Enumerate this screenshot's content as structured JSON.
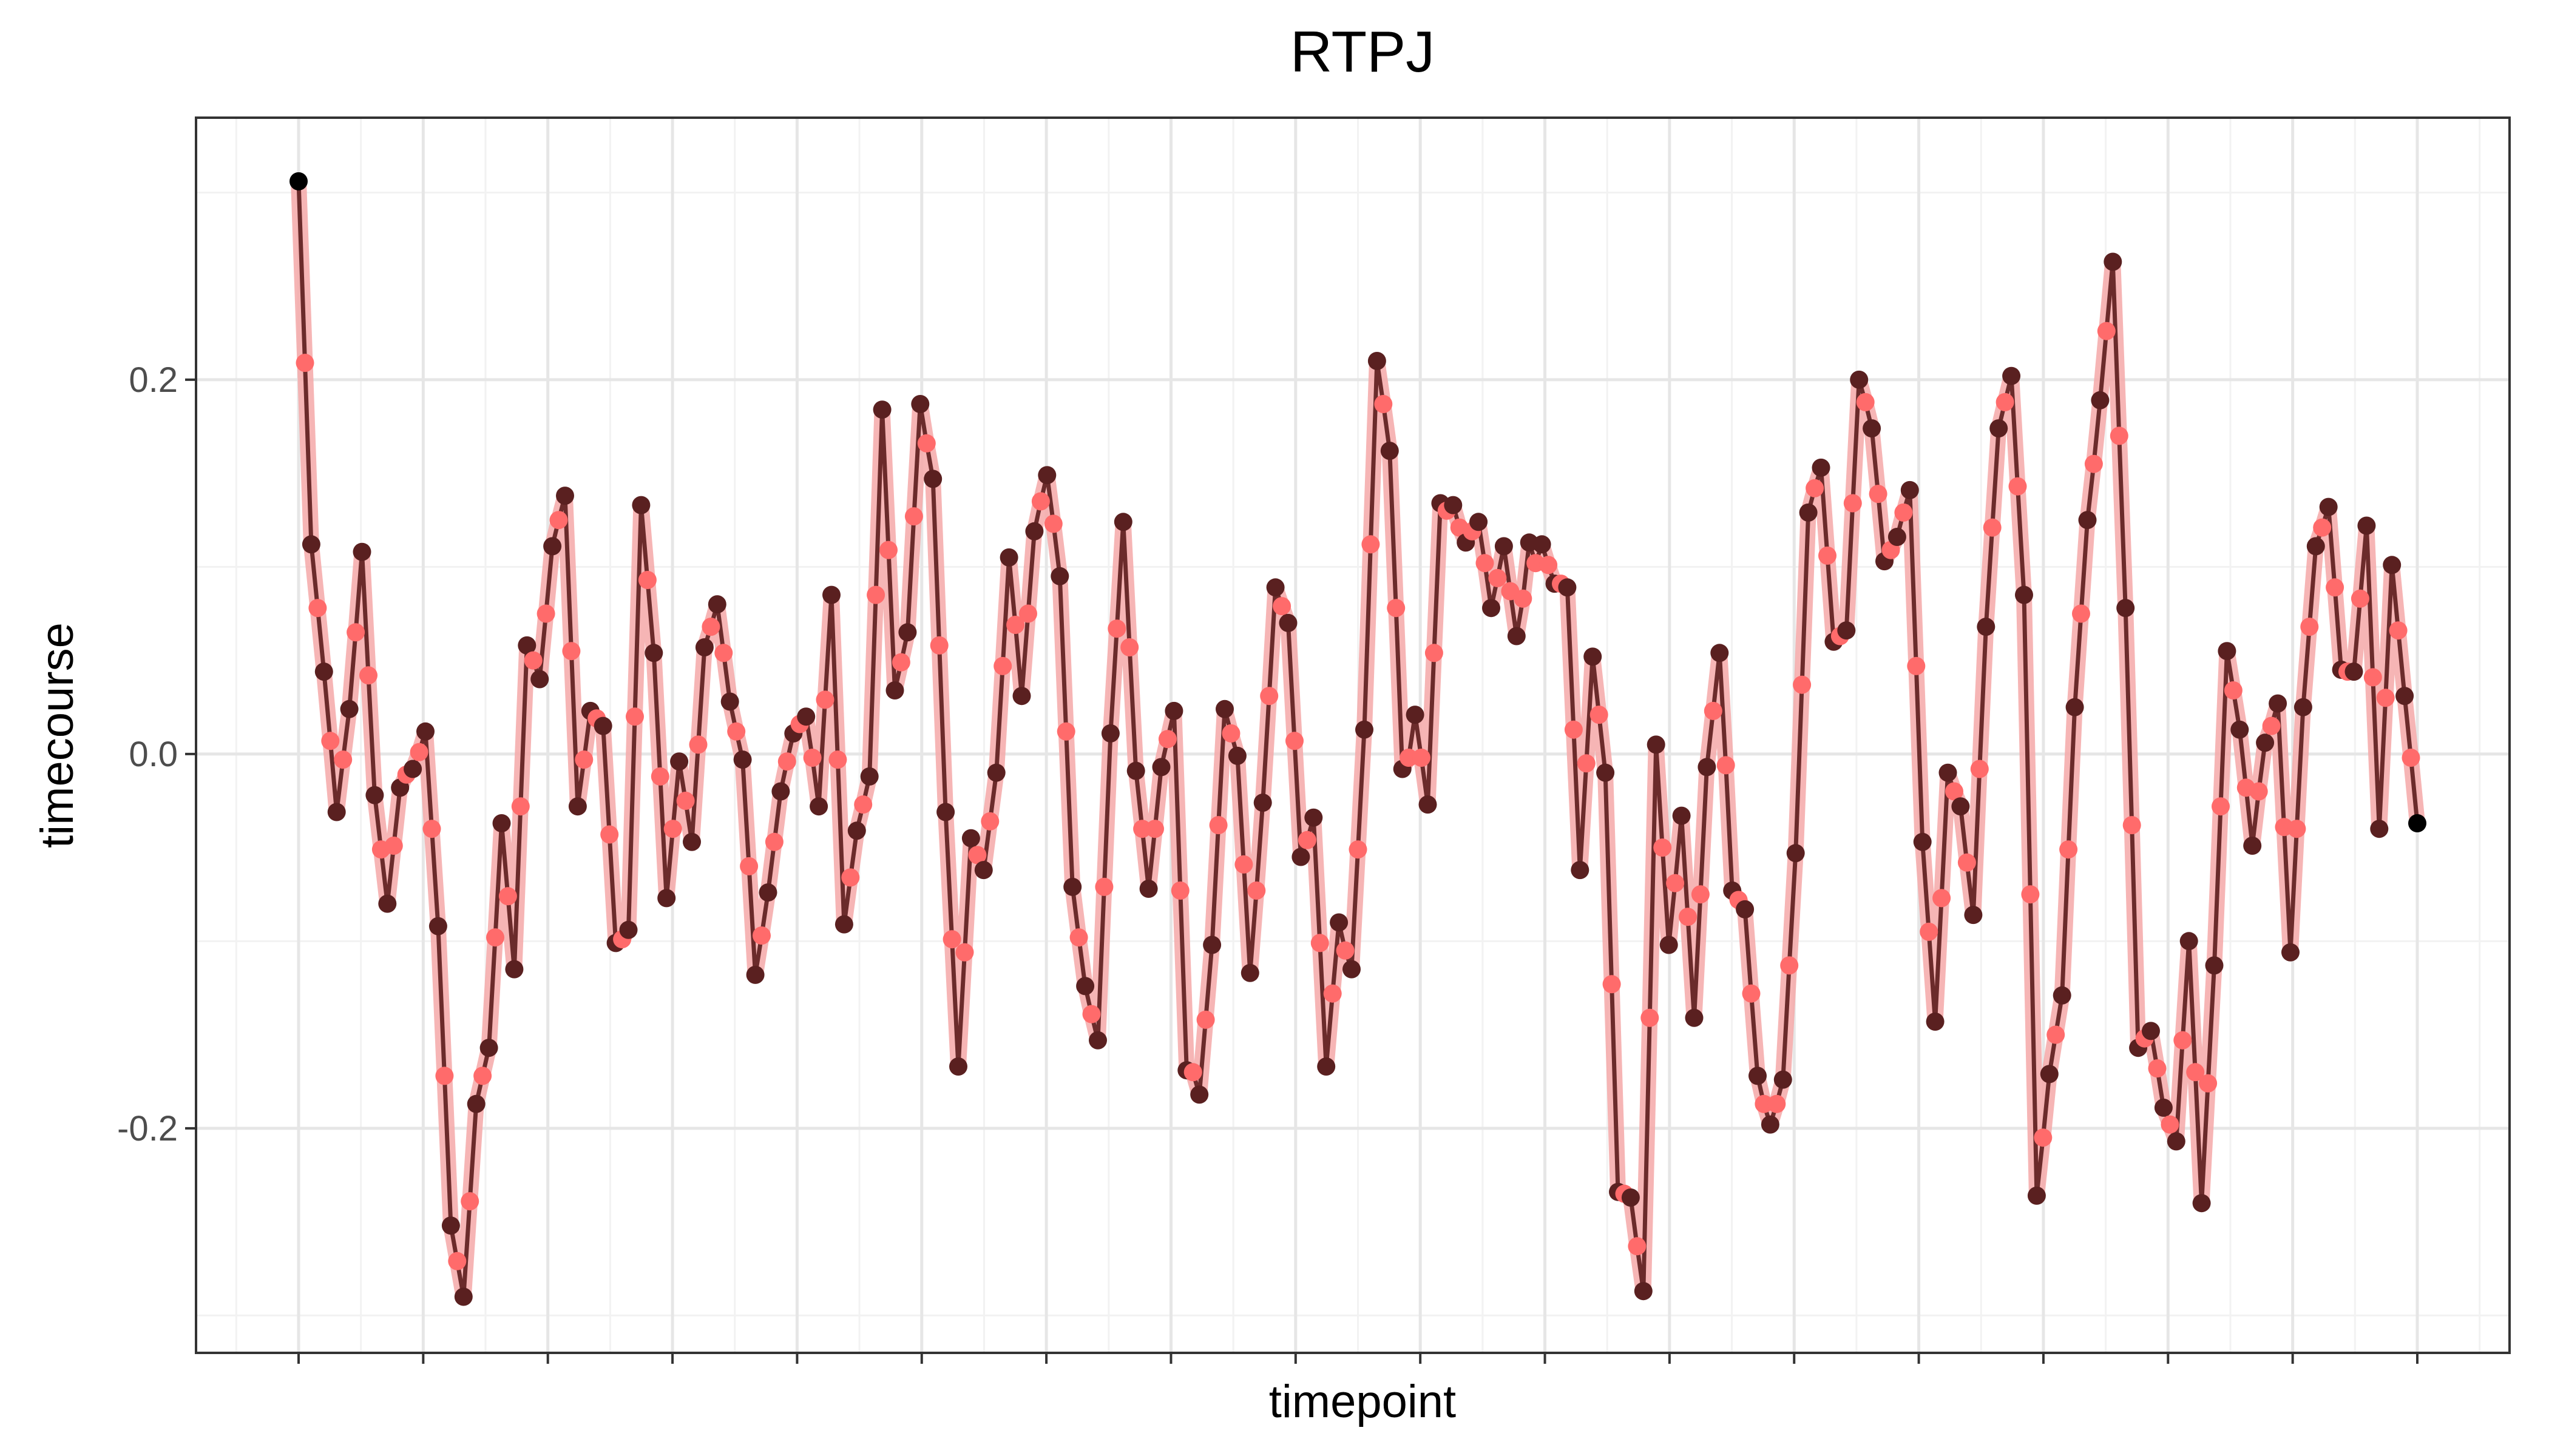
{
  "chart_data": {
    "type": "line",
    "title": "RTPJ",
    "xlabel": "timepoint",
    "ylabel": "timecourse",
    "y_ticks": [
      -0.2,
      0.0,
      0.2
    ],
    "y_tick_labels": [
      "-0.2",
      "0.0",
      "0.2"
    ],
    "ylim": [
      -0.32,
      0.34
    ],
    "x_ticks_labeled": false,
    "grid": true,
    "legend": "none",
    "colors": {
      "observed_line": "#6b2b2b",
      "observed_point": "#5a2020",
      "fitted_band": "#f4a8a8",
      "fitted_point": "#ff6b6b",
      "endpoint": "#000000",
      "grid_major": "#e6e6e6",
      "grid_minor": "#f2f2f2",
      "panel_border": "#333333"
    },
    "series": [
      {
        "values": [
          0.306,
          0.209,
          0.112,
          0.078,
          0.044,
          0.007,
          -0.031,
          -0.003,
          0.024,
          0.065,
          0.108,
          0.042,
          -0.022,
          -0.051,
          -0.08,
          -0.049,
          -0.018,
          -0.011,
          -0.008,
          0.001,
          0.012,
          -0.04,
          -0.092,
          -0.172,
          -0.252,
          -0.271,
          -0.29,
          -0.239,
          -0.187,
          -0.172,
          -0.157,
          -0.098,
          -0.037,
          -0.076,
          -0.115,
          -0.028,
          0.058,
          0.05,
          0.04,
          0.075,
          0.111,
          0.125,
          0.138,
          0.055,
          -0.028,
          -0.003,
          0.023,
          0.019,
          0.015,
          -0.043,
          -0.101,
          -0.099,
          -0.094,
          0.02,
          0.133,
          0.093,
          0.054,
          -0.012,
          -0.077,
          -0.04,
          -0.004,
          -0.025,
          -0.047,
          0.005,
          0.057,
          0.068,
          0.08,
          0.054,
          0.028,
          0.012,
          -0.003,
          -0.06,
          -0.118,
          -0.097,
          -0.074,
          -0.047,
          -0.02,
          -0.004,
          0.011,
          0.016,
          0.02,
          -0.002,
          -0.028,
          0.029,
          0.085,
          -0.003,
          -0.091,
          -0.066,
          -0.041,
          -0.027,
          -0.012,
          0.085,
          0.184,
          0.109,
          0.034,
          0.049,
          0.065,
          0.127,
          0.187,
          0.166,
          0.147,
          0.058,
          -0.031,
          -0.099,
          -0.167,
          -0.106,
          -0.045,
          -0.054,
          -0.062,
          -0.036,
          -0.01,
          0.047,
          0.105,
          0.069,
          0.031,
          0.075,
          0.119,
          0.135,
          0.149,
          0.123,
          0.095,
          0.012,
          -0.071,
          -0.098,
          -0.124,
          -0.139,
          -0.153,
          -0.071,
          0.011,
          0.067,
          0.124,
          0.057,
          -0.009,
          -0.04,
          -0.072,
          -0.04,
          -0.007,
          0.008,
          0.023,
          -0.073,
          -0.169,
          -0.17,
          -0.182,
          -0.142,
          -0.102,
          -0.038,
          0.024,
          0.011,
          -0.001,
          -0.059,
          -0.117,
          -0.073,
          -0.026,
          0.031,
          0.089,
          0.079,
          0.07,
          0.007,
          -0.055,
          -0.046,
          -0.034,
          -0.101,
          -0.167,
          -0.128,
          -0.09,
          -0.105,
          -0.115,
          -0.051,
          0.013,
          0.112,
          0.21,
          0.187,
          0.162,
          0.078,
          -0.008,
          -0.002,
          0.021,
          -0.002,
          -0.027,
          0.054,
          0.134,
          0.13,
          0.133,
          0.121,
          0.113,
          0.119,
          0.124,
          0.102,
          0.078,
          0.094,
          0.111,
          0.087,
          0.063,
          0.083,
          0.113,
          0.102,
          0.112,
          0.101,
          0.091,
          0.091,
          0.089,
          0.013,
          -0.062,
          -0.005,
          0.052,
          0.021,
          -0.01,
          -0.123,
          -0.234,
          -0.235,
          -0.237,
          -0.263,
          -0.287,
          -0.141,
          0.005,
          -0.05,
          -0.102,
          -0.069,
          -0.033,
          -0.087,
          -0.141,
          -0.075,
          -0.007,
          0.023,
          0.054,
          -0.006,
          -0.073,
          -0.078,
          -0.083,
          -0.128,
          -0.172,
          -0.187,
          -0.198,
          -0.187,
          -0.174,
          -0.113,
          -0.053,
          0.037,
          0.129,
          0.142,
          0.153,
          0.106,
          0.06,
          0.063,
          0.066,
          0.134,
          0.2,
          0.188,
          0.174,
          0.139,
          0.103,
          0.109,
          0.116,
          0.129,
          0.141,
          0.047,
          -0.047,
          -0.095,
          -0.143,
          -0.077,
          -0.01,
          -0.02,
          -0.028,
          -0.058,
          -0.086,
          -0.008,
          0.068,
          0.121,
          0.174,
          0.188,
          0.202,
          0.143,
          0.085,
          -0.075,
          -0.236,
          -0.205,
          -0.171,
          -0.15,
          -0.129,
          -0.051,
          0.025,
          0.075,
          0.125,
          0.155,
          0.189,
          0.226,
          0.263,
          0.17,
          0.078,
          -0.038,
          -0.157,
          -0.152,
          -0.148,
          -0.168,
          -0.189,
          -0.198,
          -0.207,
          -0.153,
          -0.1,
          -0.17,
          -0.24,
          -0.176,
          -0.113,
          -0.028,
          0.055,
          0.034,
          0.013,
          -0.018,
          -0.049,
          -0.02,
          0.006,
          0.015,
          0.027,
          -0.039,
          -0.106,
          -0.04,
          0.025,
          0.068,
          0.111,
          0.121,
          0.132,
          0.089,
          0.045,
          0.044,
          0.044,
          0.083,
          0.122,
          0.041,
          -0.04,
          0.03,
          0.101,
          0.066,
          0.031,
          -0.002,
          -0.037
        ]
      }
    ]
  }
}
